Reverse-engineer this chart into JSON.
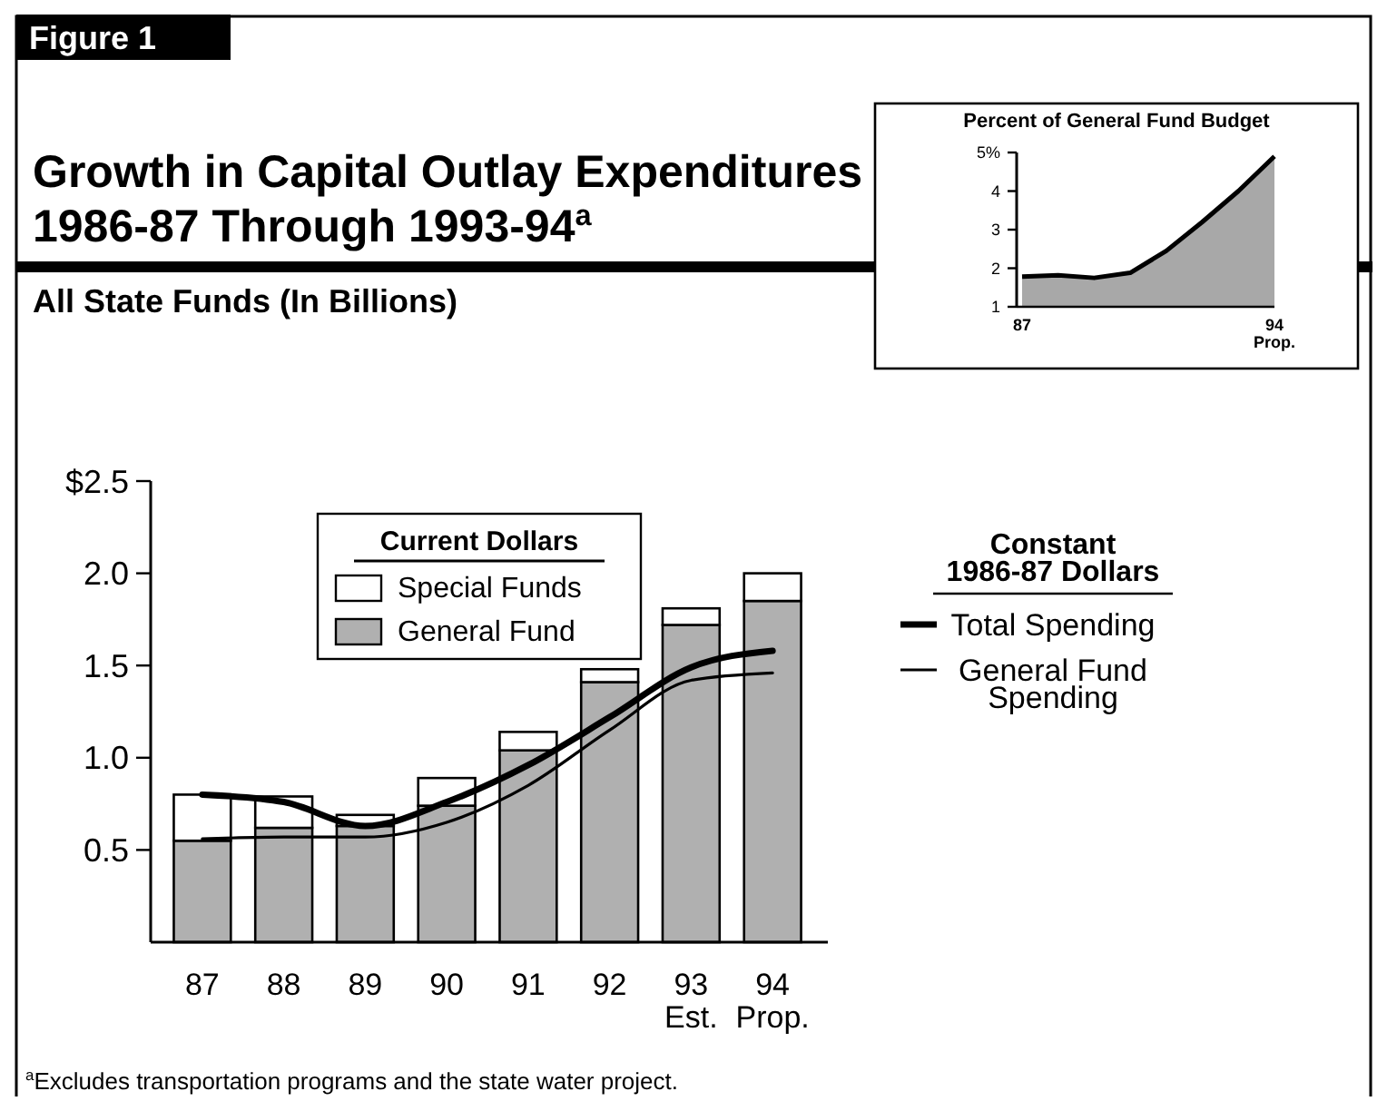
{
  "chart_data": [
    {
      "type": "bar",
      "title": "Growth in Capital Outlay Expenditures 1986-87 Through 1993-94$^{a}$",
      "subtitle": "All State Funds (In Billions)",
      "categories": [
        "87",
        "88",
        "89",
        "90",
        "91",
        "92",
        "93\nEst.",
        "94\nProp."
      ],
      "stacked": true,
      "legend": "top right",
      "legend_title": "Current Dollars",
      "ylim": [
        0,
        2.5
      ],
      "yticks": [
        0.5,
        {
          "value": 1,
          "label": "1.0"
        },
        1.5,
        {
          "value": 2,
          "label": "2.0"
        },
        {
          "value": 2.5,
          "label": "$2.5"
        }
      ],
      "series": [
        {
          "name": "General Fund",
          "type": "bar",
          "color": "#b0b0b0",
          "values": [
            0.55,
            0.62,
            0.63,
            0.74,
            1.04,
            1.41,
            1.72,
            1.85
          ]
        },
        {
          "name": "Special Funds",
          "type": "bar",
          "color": "#ffffff",
          "values": [
            0.25,
            0.17,
            0.06,
            0.15,
            0.1,
            0.07,
            0.09,
            0.15
          ]
        },
        {
          "name": "Total Spending",
          "type": "line",
          "color": "#000000",
          "values": [
            0.8,
            0.76,
            0.63,
            0.76,
            0.96,
            1.22,
            1.49,
            1.58
          ]
        },
        {
          "name": "General Fund Spending",
          "type": "line",
          "color": "#000000",
          "values": [
            0.56,
            0.57,
            0.57,
            0.65,
            0.85,
            1.15,
            1.42,
            1.46
          ]
        }
      ],
      "annotations": [
        "Figure 1",
        "Constant 1986-87 Dollars",
        "$^{a}$Excludes transportation programs and the state water project."
      ]
    },
    {
      "type": "area",
      "title": "Percent of General Fund Budget",
      "categories": [
        "87",
        null,
        null,
        null,
        null,
        null,
        null,
        "94\nProp."
      ],
      "values": [
        1.78,
        1.82,
        1.75,
        1.88,
        2.45,
        3.2,
        4.0,
        4.9
      ],
      "color": "#a8a8a8",
      "ylim": [
        1,
        5
      ],
      "yticks": [
        1,
        2,
        3,
        4,
        {
          "value": 5,
          "label": "5%"
        }
      ]
    }
  ]
}
